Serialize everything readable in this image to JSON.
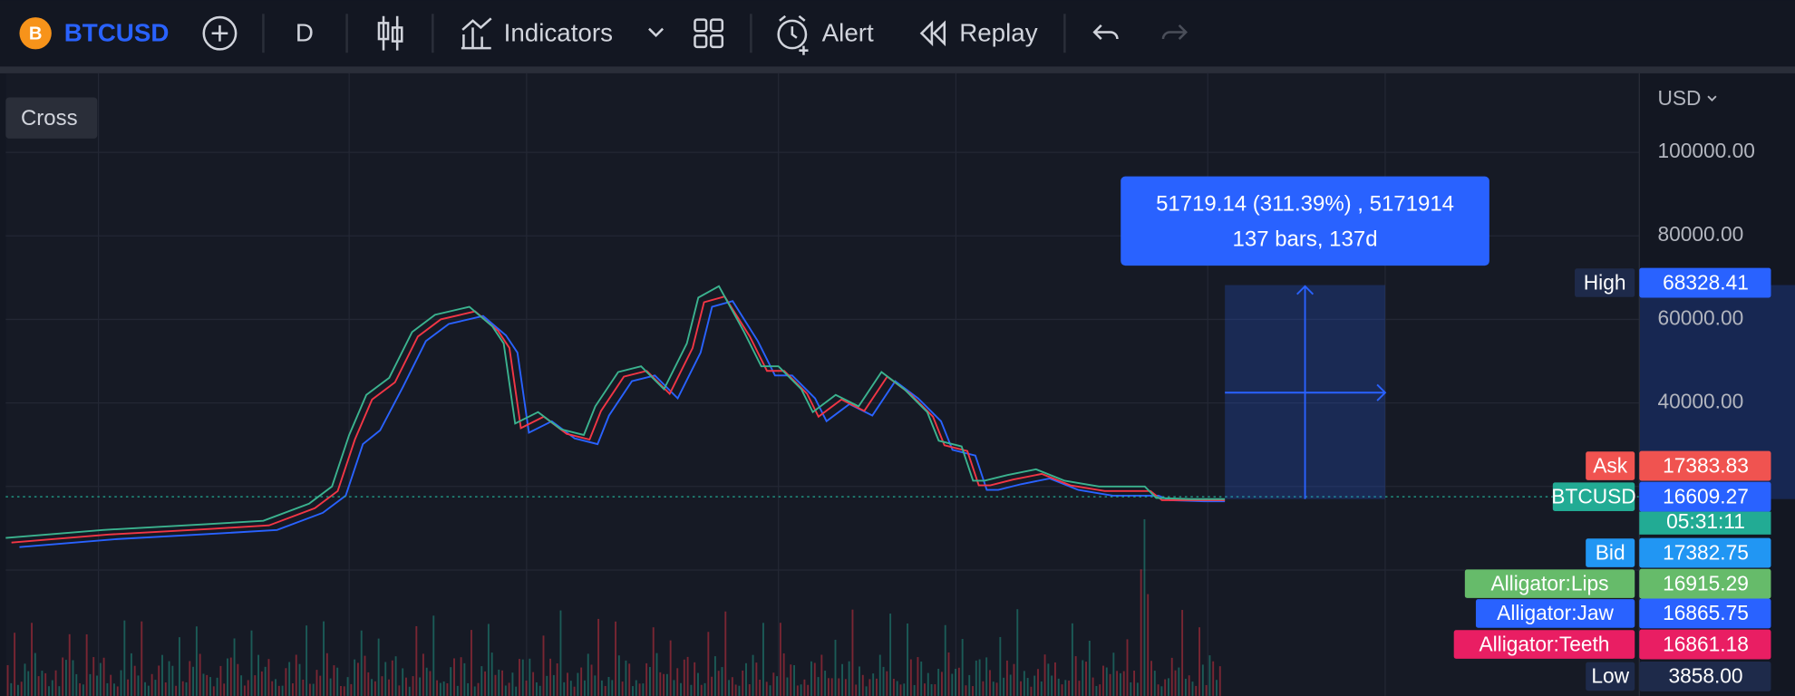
{
  "toolbar": {
    "symbol": "BTCUSD",
    "interval": "D",
    "indicators": "Indicators",
    "alert": "Alert",
    "replay": "Replay"
  },
  "chart": {
    "tooltip": "Cross",
    "currency": "USD",
    "price_labels": [
      "100000.00",
      "80000.00",
      "60000.00",
      "40000.00"
    ],
    "measure": {
      "line1": "51719.14 (311.39%) , 5171914",
      "line2": "137 bars, 137d"
    },
    "tags": [
      {
        "label": "High",
        "value": "68328.41"
      },
      {
        "label": "Ask",
        "value": "17383.83"
      },
      {
        "label": "BTCUSD",
        "value": "16609.27"
      },
      {
        "label": "Bid",
        "value": "17382.75"
      },
      {
        "label": "Alligator:Lips",
        "value": "16915.29"
      },
      {
        "label": "Alligator:Jaw",
        "value": "16865.75"
      },
      {
        "label": "Alligator:Teeth",
        "value": "16861.18"
      },
      {
        "label": "Low",
        "value": "3858.00"
      }
    ],
    "countdown": "05:31:11"
  }
}
